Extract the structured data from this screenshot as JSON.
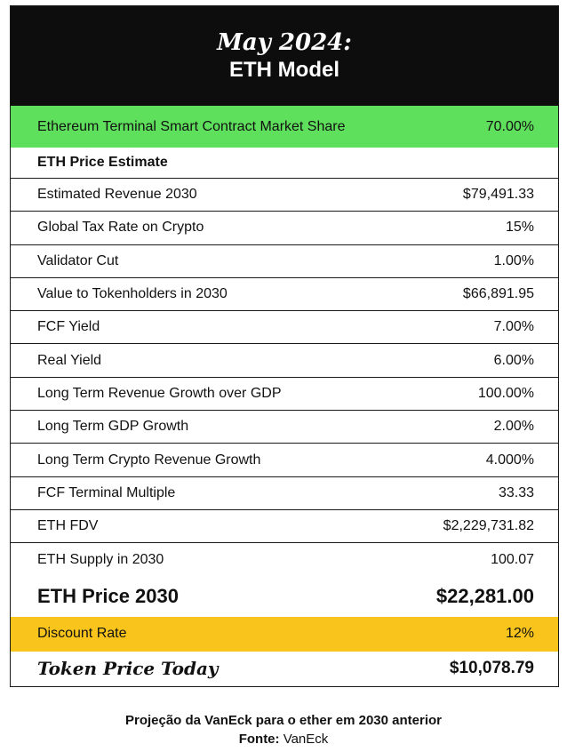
{
  "header": {
    "title_italic": "May 2024:",
    "title": "ETH Model"
  },
  "market_share": {
    "label": "Ethereum Terminal Smart Contract Market Share",
    "value": "70.00%"
  },
  "section": {
    "label": "ETH Price Estimate"
  },
  "rows": [
    {
      "label": "Estimated Revenue 2030",
      "value": "$79,491.33"
    },
    {
      "label": "Global Tax Rate on Crypto",
      "value": "15%"
    },
    {
      "label": "Validator Cut",
      "value": "1.00%"
    },
    {
      "label": "Value to Tokenholders in 2030",
      "value": "$66,891.95"
    },
    {
      "label": "FCF Yield",
      "value": "7.00%"
    },
    {
      "label": "Real Yield",
      "value": "6.00%"
    },
    {
      "label": "Long Term Revenue Growth over GDP",
      "value": "100.00%"
    },
    {
      "label": "Long Term GDP Growth",
      "value": "2.00%"
    },
    {
      "label": "Long Term Crypto Revenue Growth",
      "value": "4.000%"
    },
    {
      "label": "FCF Terminal Multiple",
      "value": "33.33"
    },
    {
      "label": "ETH FDV",
      "value": "$2,229,731.82"
    },
    {
      "label": "ETH Supply in 2030",
      "value": "100.07"
    }
  ],
  "price_2030": {
    "label": "ETH Price 2030",
    "value": "$22,281.00"
  },
  "discount": {
    "label": "Discount Rate",
    "value": "12%"
  },
  "today": {
    "label": "Token Price Today",
    "value": "$10,078.79"
  },
  "caption": {
    "line1": "Projeção da VanEck para o ether em 2030 anterior",
    "source_label": "Fonte:",
    "source": "VanEck"
  },
  "colors": {
    "header_bg": "#0d0d0d",
    "green": "#5fe05c",
    "yellow": "#f9c51c"
  }
}
